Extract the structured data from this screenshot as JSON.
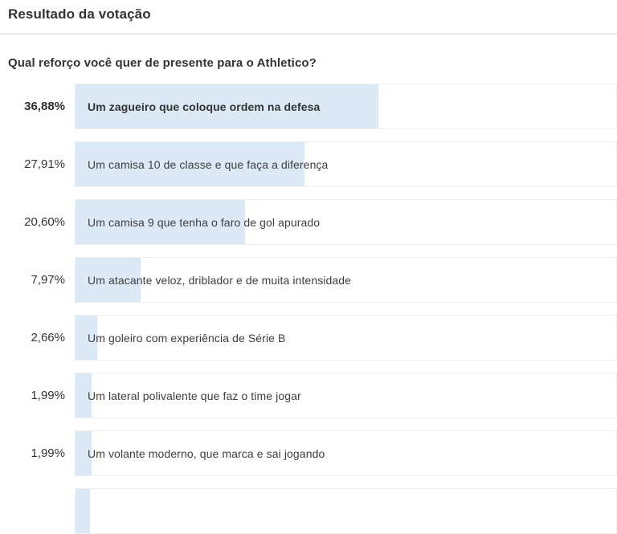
{
  "header": {
    "title": "Resultado da votação"
  },
  "poll": {
    "question": "Qual reforço você quer de presente para o Athletico?",
    "accent_color": "#dbe9f7",
    "options": [
      {
        "percent_label": "36,88%",
        "value": 36.88,
        "label": "Um zagueiro que coloque ordem na defesa",
        "highlighted": true
      },
      {
        "percent_label": "27,91%",
        "value": 27.91,
        "label": "Um camisa 10 de classe e que faça a diferença",
        "highlighted": false
      },
      {
        "percent_label": "20,60%",
        "value": 20.6,
        "label": "Um camisa 9 que tenha o faro de gol apurado",
        "highlighted": false
      },
      {
        "percent_label": "7,97%",
        "value": 7.97,
        "label": "Um atacante veloz, driblador e de muita intensidade",
        "highlighted": false
      },
      {
        "percent_label": "2,66%",
        "value": 2.66,
        "label": "Um goleiro com experiência de Série B",
        "highlighted": false
      },
      {
        "percent_label": "1,99%",
        "value": 1.99,
        "label": "Um lateral polivalente que faz o time jogar",
        "highlighted": false
      },
      {
        "percent_label": "1,99%",
        "value": 1.99,
        "label": "Um volante moderno, que marca e sai jogando",
        "highlighted": false
      }
    ],
    "partial_next_row": {
      "visible_sliver": true,
      "approx_value": 1.8
    }
  },
  "chart_data": {
    "type": "bar",
    "orientation": "horizontal",
    "title": "Qual reforço você quer de presente para o Athletico?",
    "subtitle": "Resultado da votação",
    "categories": [
      "Um zagueiro que coloque ordem na defesa",
      "Um camisa 10 de classe e que faça a diferença",
      "Um camisa 9 que tenha o faro de gol apurado",
      "Um atacante veloz, driblador e de muita intensidade",
      "Um goleiro com experiência de Série B",
      "Um lateral polivalente que faz o time jogar",
      "Um volante moderno, que marca e sai jogando"
    ],
    "values": [
      36.88,
      27.91,
      20.6,
      7.97,
      2.66,
      1.99,
      1.99
    ],
    "value_labels": [
      "36,88%",
      "27,91%",
      "20,60%",
      "7,97%",
      "2,66%",
      "1,99%",
      "1,99%"
    ],
    "unit": "%",
    "bar_color": "#dbe9f7",
    "axes_shown": false,
    "legend": "none"
  }
}
